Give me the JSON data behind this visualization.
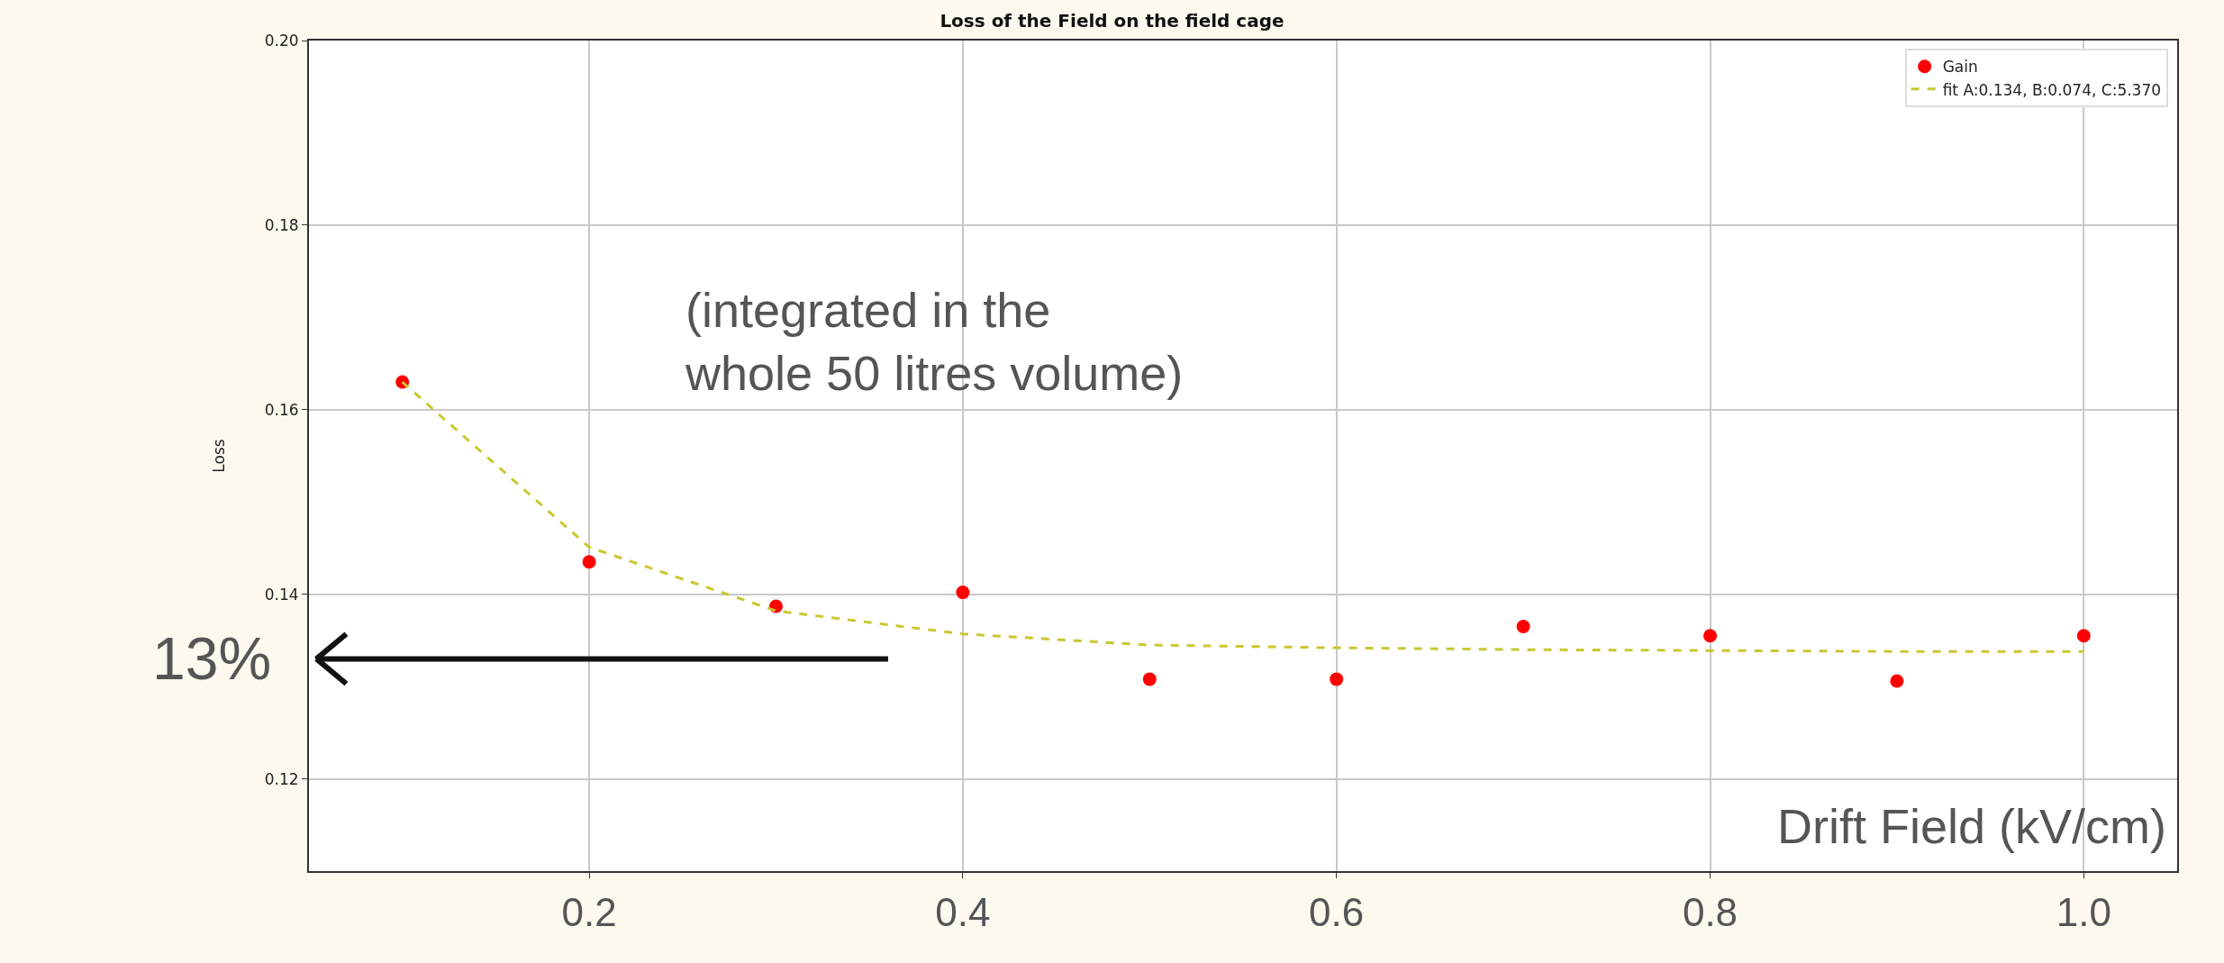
{
  "chart_data": {
    "type": "scatter",
    "title": "Loss of the Field on the field cage",
    "xlabel": "Drift Field (kV/cm)",
    "ylabel": "Loss",
    "xlim": [
      0.05,
      1.05
    ],
    "xticks": [
      0.2,
      0.4,
      0.6,
      0.8,
      {
        "value": 1.0,
        "label": "1.0"
      }
    ],
    "ylim": [
      0.11,
      0.2
    ],
    "yticks": [
      0.12,
      0.14,
      0.16,
      0.18,
      {
        "value": 0.2,
        "label": "0.20"
      }
    ],
    "grid": true,
    "legend": "top right",
    "series": [
      {
        "name": "Gain",
        "marker": "circle",
        "color": "#ff0000",
        "x": [
          0.1,
          0.2,
          0.3,
          0.4,
          0.5,
          0.6,
          0.7,
          0.8,
          0.9,
          1.0
        ],
        "values": [
          0.163,
          0.1435,
          0.1387,
          0.1402,
          0.1308,
          0.1308,
          0.1365,
          0.1355,
          0.1306,
          0.1355
        ]
      },
      {
        "name": "fit A:0.134, B:0.074, C:5.370",
        "type": "line",
        "line_style": "dashed",
        "color": "#c8c832",
        "x": [
          0.1,
          0.2,
          0.3,
          0.4,
          0.5,
          0.6,
          0.7,
          0.8,
          0.9,
          1.0
        ],
        "values": [
          0.163,
          0.1451,
          0.1382,
          0.1357,
          0.1345,
          0.1342,
          0.134,
          0.1339,
          0.1338,
          0.1338
        ]
      }
    ],
    "annotations": [
      "(integrated in the\nwhole 50 litres volume)"
    ],
    "ref_lines": [
      {
        "axis": "y",
        "value": 0.133,
        "label": "13%"
      }
    ]
  }
}
